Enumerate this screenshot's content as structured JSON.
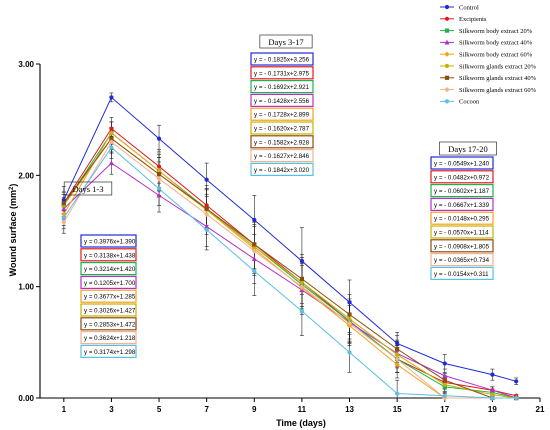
{
  "chart_data": {
    "type": "line",
    "xlabel": "Time (days)",
    "ylabel": "Wound surface (mm",
    "ylabel_sup": "2",
    "ylabel_end": ")",
    "xlim": [
      0,
      21
    ],
    "ylim": [
      0,
      3
    ],
    "x_ticks": [
      "1",
      "3",
      "5",
      "7",
      "9",
      "11",
      "13",
      "15",
      "17",
      "19",
      "21"
    ],
    "y_ticks": [
      "0.00",
      "1.00",
      "2.00",
      "3.00"
    ],
    "legend_placement": "top-right",
    "x": [
      1,
      3,
      5,
      7,
      9,
      11,
      13,
      15,
      17,
      19,
      20
    ],
    "series": [
      {
        "name": "Control",
        "color": "#1f2bd6",
        "marker": "circle",
        "values": [
          1.78,
          2.7,
          2.33,
          1.96,
          1.6,
          1.23,
          0.86,
          0.49,
          0.31,
          0.21,
          0.15
        ],
        "errors": [
          0.12,
          0.04,
          0.12,
          0.15,
          0.22,
          0.3,
          0.2,
          0.1,
          0.08,
          0.05,
          0.03
        ]
      },
      {
        "name": "Excipients",
        "color": "#e4191c",
        "marker": "circle",
        "values": [
          1.75,
          2.42,
          2.08,
          1.73,
          1.38,
          1.04,
          0.69,
          0.35,
          0.14,
          0.07,
          0.02
        ],
        "errors": [
          0.1,
          0.1,
          0.15,
          0.18,
          0.22,
          0.22,
          0.18,
          0.12,
          0.06,
          0.03,
          0.01
        ]
      },
      {
        "name": "Silkworm body extract 20%",
        "color": "#1db34a",
        "marker": "square",
        "values": [
          1.73,
          2.38,
          2.04,
          1.7,
          1.36,
          1.02,
          0.69,
          0.35,
          0.1,
          0.05,
          0.0
        ],
        "errors": [
          0.1,
          0.1,
          0.15,
          0.18,
          0.22,
          0.22,
          0.18,
          0.12,
          0.06,
          0.03,
          0.0
        ]
      },
      {
        "name": "Silkworm body extract 40%",
        "color": "#b62fc8",
        "marker": "triangle",
        "values": [
          1.7,
          2.11,
          1.82,
          1.54,
          1.25,
          0.97,
          0.68,
          0.4,
          0.2,
          0.07,
          0.0
        ],
        "errors": [
          0.1,
          0.1,
          0.15,
          0.18,
          0.22,
          0.22,
          0.18,
          0.12,
          0.06,
          0.03,
          0.0
        ]
      },
      {
        "name": "Silkworm body extract 60%",
        "color": "#f2a21a",
        "marker": "diamond",
        "values": [
          1.65,
          2.38,
          2.04,
          1.69,
          1.34,
          0.99,
          0.65,
          0.3,
          0.0,
          0.0,
          0.0
        ],
        "errors": [
          0.1,
          0.1,
          0.15,
          0.18,
          0.22,
          0.22,
          0.18,
          0.12,
          0.0,
          0.0,
          0.0
        ]
      },
      {
        "name": "Silkworm glands extract 20%",
        "color": "#c7b100",
        "marker": "circle",
        "values": [
          1.73,
          2.33,
          2.01,
          1.69,
          1.36,
          1.04,
          0.71,
          0.39,
          0.12,
          0.03,
          0.0
        ],
        "errors": [
          0.1,
          0.1,
          0.15,
          0.18,
          0.22,
          0.22,
          0.18,
          0.12,
          0.06,
          0.03,
          0.0
        ]
      },
      {
        "name": "Silkworm glands extract 40%",
        "color": "#8a4c12",
        "marker": "square",
        "values": [
          1.75,
          2.33,
          2.01,
          1.7,
          1.38,
          1.07,
          0.75,
          0.44,
          0.16,
          0.0,
          0.0
        ],
        "errors": [
          0.1,
          0.1,
          0.15,
          0.18,
          0.22,
          0.22,
          0.18,
          0.12,
          0.06,
          0.0,
          0.0
        ]
      },
      {
        "name": "Silkworm glands extract 60%",
        "color": "#f6b08a",
        "marker": "diamond",
        "values": [
          1.58,
          2.3,
          1.97,
          1.65,
          1.32,
          1.0,
          0.67,
          0.35,
          0.0,
          0.0,
          0.0
        ],
        "errors": [
          0.1,
          0.1,
          0.15,
          0.18,
          0.22,
          0.22,
          0.18,
          0.12,
          0.0,
          0.0,
          0.0
        ]
      },
      {
        "name": "Cocoon",
        "color": "#58c0e4",
        "marker": "circle",
        "values": [
          1.62,
          2.25,
          1.88,
          1.51,
          1.14,
          0.78,
          0.41,
          0.04,
          0.02,
          0.0,
          0.0
        ],
        "errors": [
          0.1,
          0.1,
          0.15,
          0.18,
          0.22,
          0.22,
          0.18,
          0.12,
          0.03,
          0.0,
          0.0
        ]
      }
    ],
    "annotations": [
      {
        "title": "Days 1-3",
        "equations": [
          {
            "text": "y = 0.3976x+1.390",
            "color": "#1f2bd6"
          },
          {
            "text": "y = 0.3138x+1.438",
            "color": "#e4191c"
          },
          {
            "text": "y = 0.3214x+1.420",
            "color": "#1db34a"
          },
          {
            "text": "y = 0.1205x+1.700",
            "color": "#b62fc8"
          },
          {
            "text": "y = 0.3677x+1.285",
            "color": "#f2a21a"
          },
          {
            "text": "y = 0.3026x+1.427",
            "color": "#c7b100"
          },
          {
            "text": "y = 0.2853x+1.472",
            "color": "#8a4c12"
          },
          {
            "text": "y = 0.3624x+1.218",
            "color": "#f6b08a"
          },
          {
            "text": "y = 0.3174x+1.298",
            "color": "#58c0e4"
          }
        ]
      },
      {
        "title": "Days 3-17",
        "equations": [
          {
            "text": "y = - 0.1825x+3.256",
            "color": "#1f2bd6"
          },
          {
            "text": "y = - 0.1731x+2.975",
            "color": "#e4191c"
          },
          {
            "text": "y = - 0.1692x+2.921",
            "color": "#1db34a"
          },
          {
            "text": "y = - 0.1428x+2.556",
            "color": "#b62fc8"
          },
          {
            "text": "y = - 0.1728x+2.899",
            "color": "#f2a21a"
          },
          {
            "text": "y = - 0.1620x+2.787",
            "color": "#c7b100"
          },
          {
            "text": "y = - 0.1582x+2.928",
            "color": "#8a4c12"
          },
          {
            "text": "y = - 0.1627x+2.846",
            "color": "#f6b08a"
          },
          {
            "text": "y = - 0.1842x+3.020",
            "color": "#58c0e4"
          }
        ]
      },
      {
        "title": "Days 17-20",
        "equations": [
          {
            "text": "y = - 0.0549x+1.240",
            "color": "#1f2bd6"
          },
          {
            "text": "y = - 0.0482x+0.972",
            "color": "#e4191c"
          },
          {
            "text": "y = - 0.0602x+1.187",
            "color": "#1db34a"
          },
          {
            "text": "y = - 0.0667x+1.339",
            "color": "#b62fc8"
          },
          {
            "text": "y = - 0.0148x+0.295",
            "color": "#f2a21a"
          },
          {
            "text": "y = - 0.0570x+1.114",
            "color": "#c7b100"
          },
          {
            "text": "y = - 0.0908x+1.805",
            "color": "#8a4c12"
          },
          {
            "text": "y = - 0.0365x+0.734",
            "color": "#f6b08a"
          },
          {
            "text": "y = - 0.0154x+0.311",
            "color": "#58c0e4"
          }
        ]
      }
    ]
  }
}
